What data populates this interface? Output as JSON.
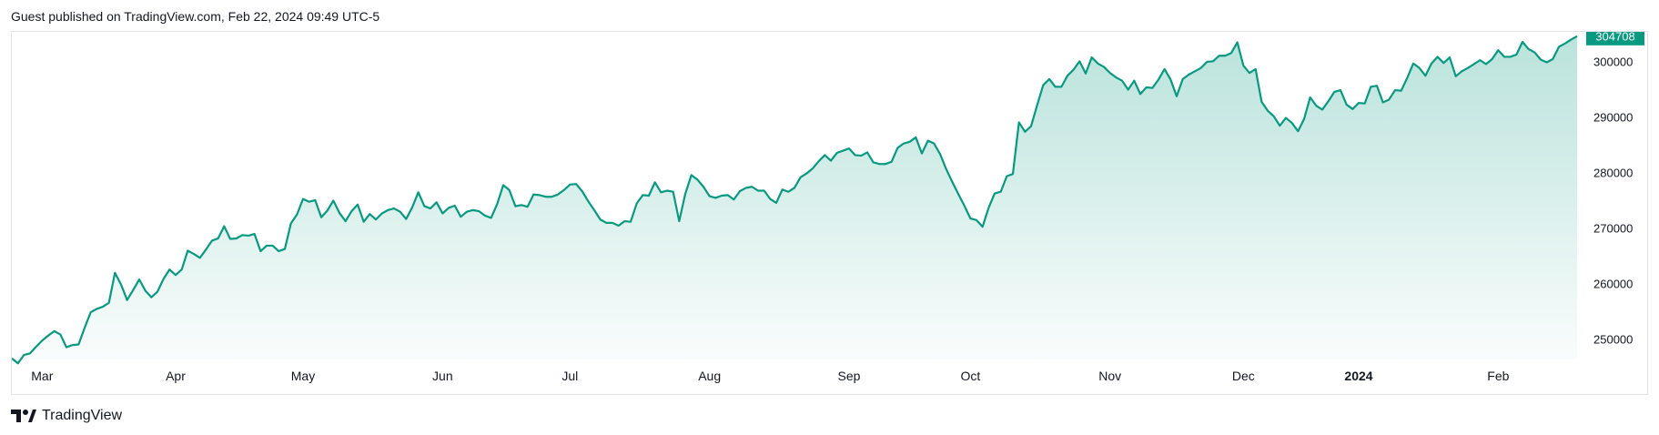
{
  "header": {
    "published": "Guest published on TradingView.com, Feb 22, 2024 09:49 UTC-5"
  },
  "footer": {
    "brand": "TradingView"
  },
  "colors": {
    "line": "#089981",
    "area_top": "#089981",
    "grid": "#e0e3eb",
    "label_bg": "#089981"
  },
  "chart_data": {
    "type": "area",
    "x_ticks": [
      {
        "label": "Mar",
        "index": 5,
        "bold": false
      },
      {
        "label": "Apr",
        "index": 27,
        "bold": false
      },
      {
        "label": "May",
        "index": 48,
        "bold": false
      },
      {
        "label": "Jun",
        "index": 71,
        "bold": false
      },
      {
        "label": "Jul",
        "index": 92,
        "bold": false
      },
      {
        "label": "Aug",
        "index": 115,
        "bold": false
      },
      {
        "label": "Sep",
        "index": 138,
        "bold": false
      },
      {
        "label": "Oct",
        "index": 158,
        "bold": false
      },
      {
        "label": "Nov",
        "index": 181,
        "bold": false
      },
      {
        "label": "Dec",
        "index": 203,
        "bold": false
      },
      {
        "label": "2024",
        "index": 222,
        "bold": true
      },
      {
        "label": "Feb",
        "index": 245,
        "bold": false
      }
    ],
    "y_ticks": [
      250000,
      260000,
      270000,
      280000,
      290000,
      300000
    ],
    "ylim": [
      246500,
      305500
    ],
    "last_value": 304708,
    "last_label": "304708",
    "values": [
      246700,
      245800,
      247300,
      247600,
      248800,
      249900,
      250800,
      251600,
      251000,
      248700,
      249100,
      249200,
      252200,
      255000,
      255600,
      256000,
      256700,
      262100,
      260000,
      257200,
      259000,
      260900,
      258900,
      257700,
      258700,
      261000,
      262700,
      261700,
      262700,
      266100,
      265500,
      264800,
      266300,
      267900,
      268300,
      270500,
      268200,
      268300,
      268900,
      268800,
      269100,
      266000,
      267000,
      267000,
      266000,
      266400,
      271000,
      272600,
      275400,
      274900,
      275200,
      272100,
      273300,
      275100,
      272900,
      271400,
      273200,
      274400,
      271300,
      272700,
      271700,
      272800,
      273400,
      273700,
      273100,
      271800,
      273900,
      276600,
      274100,
      273700,
      274800,
      272800,
      273800,
      274200,
      272200,
      273100,
      273400,
      273200,
      272400,
      272000,
      274500,
      277900,
      277000,
      274100,
      274300,
      274000,
      276200,
      276100,
      275800,
      275800,
      276200,
      277000,
      278000,
      278100,
      276800,
      275000,
      273400,
      271700,
      271100,
      271100,
      270600,
      271400,
      271300,
      274600,
      276100,
      276000,
      278400,
      276600,
      276900,
      276700,
      271400,
      276300,
      279700,
      278900,
      277600,
      275900,
      275600,
      276000,
      276100,
      275300,
      276800,
      277400,
      277600,
      276900,
      276900,
      275400,
      274700,
      277100,
      276700,
      277400,
      279300,
      280000,
      280900,
      282200,
      283300,
      282300,
      283700,
      284100,
      284500,
      283300,
      283200,
      283800,
      282000,
      281700,
      281700,
      282100,
      284600,
      285400,
      285700,
      286500,
      283600,
      285900,
      285400,
      283500,
      280800,
      278500,
      276300,
      274200,
      271900,
      271600,
      270400,
      273800,
      276400,
      276700,
      279500,
      279900,
      289200,
      287500,
      288500,
      292300,
      295900,
      297000,
      295600,
      295600,
      297600,
      298700,
      300200,
      298000,
      300900,
      299800,
      299200,
      298100,
      297300,
      296700,
      295100,
      296700,
      294300,
      295500,
      295400,
      296900,
      298800,
      296900,
      293900,
      297000,
      297800,
      298400,
      299000,
      300100,
      300200,
      301200,
      301200,
      301700,
      303600,
      299400,
      298100,
      298800,
      292900,
      291300,
      290300,
      288600,
      290000,
      289100,
      287600,
      289800,
      293700,
      292200,
      291500,
      293000,
      294700,
      295000,
      292400,
      291600,
      292700,
      292600,
      295600,
      295800,
      292800,
      293300,
      295000,
      294900,
      297200,
      299800,
      299000,
      297600,
      299800,
      301000,
      299900,
      300900,
      297500,
      298400,
      299000,
      299700,
      300400,
      299700,
      300600,
      302200,
      301000,
      301000,
      301400,
      303700,
      302400,
      301800,
      300500,
      300000,
      300600,
      302800,
      303400,
      304100,
      304708
    ]
  }
}
